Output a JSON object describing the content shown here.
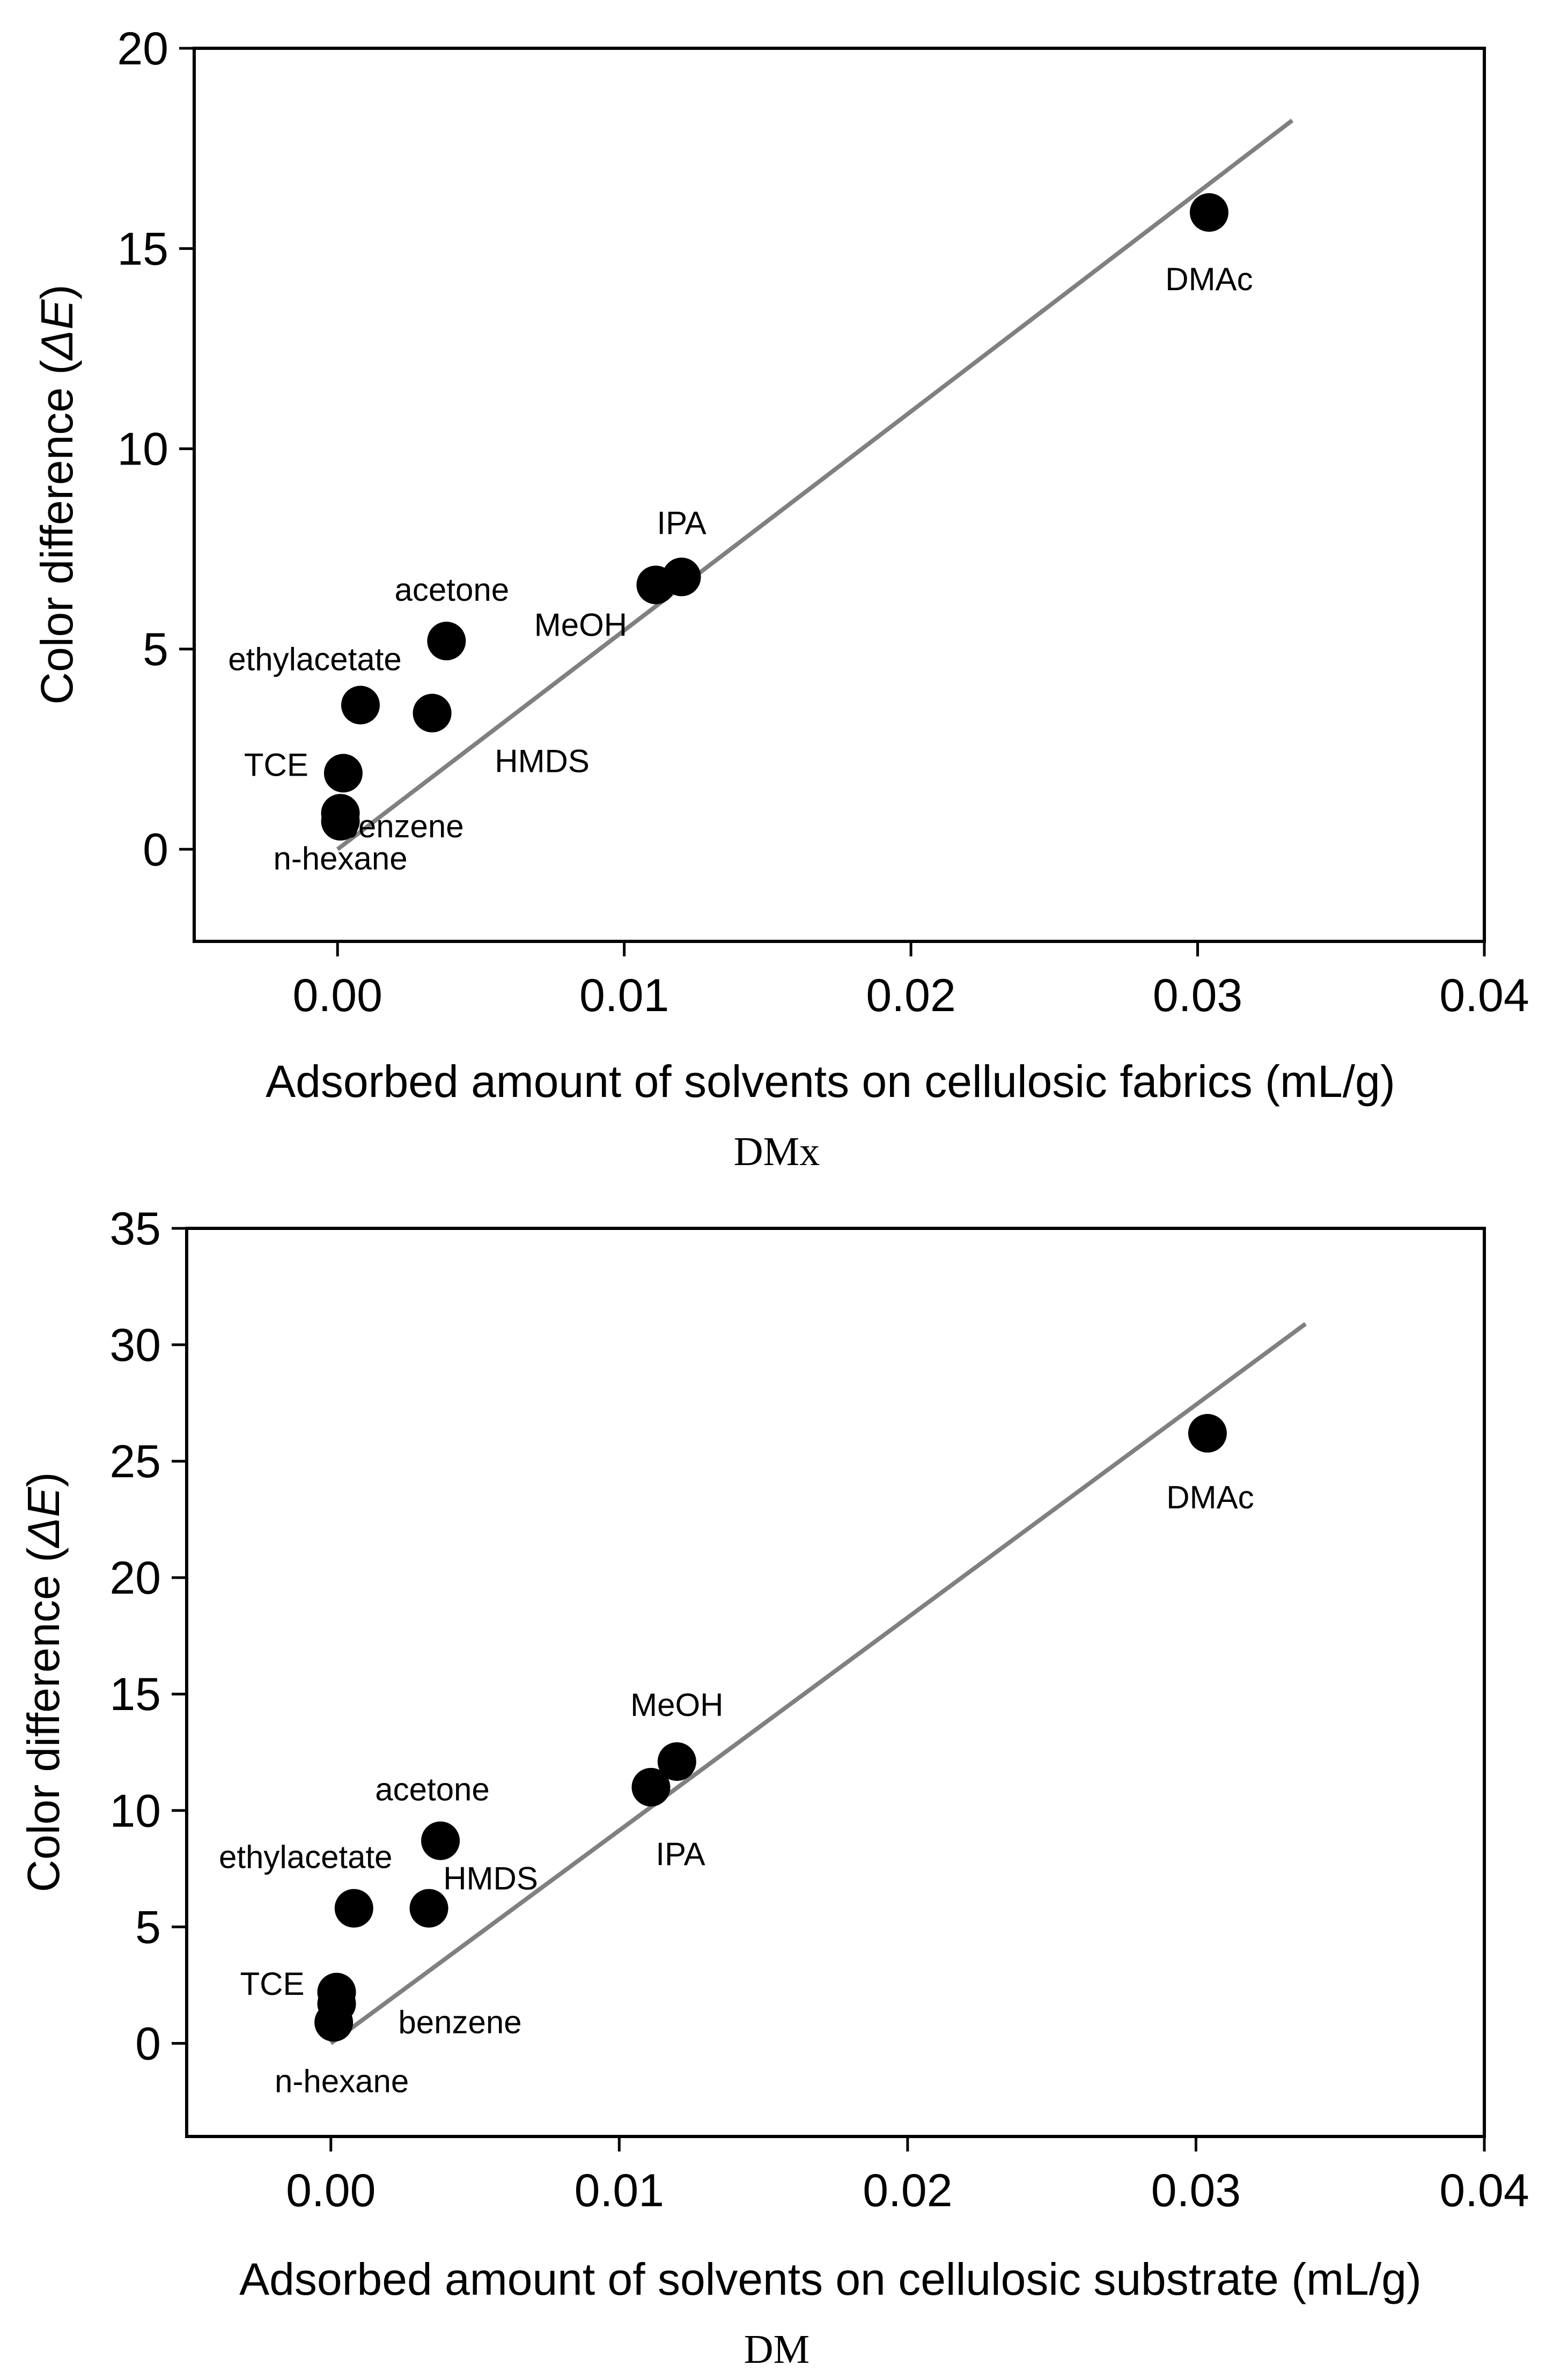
{
  "chart_data": [
    {
      "type": "scatter",
      "caption": "DMx",
      "xlabel": "Adsorbed amount of solvents on cellulosic fabrics (mL/g)",
      "ylabel": "Color difference (",
      "ylabel_symbol": "ΔE",
      "ylabel_close": ")",
      "xlim": [
        -0.005,
        0.04
      ],
      "ylim": [
        -2.3,
        20
      ],
      "xticks": [
        0.0,
        0.01,
        0.02,
        0.03,
        0.04
      ],
      "xtick_labels": [
        "0.00",
        "0.01",
        "0.02",
        "0.03",
        "0.04"
      ],
      "yticks": [
        0,
        5,
        10,
        15,
        20
      ],
      "ytick_labels": [
        "0",
        "5",
        "10",
        "15",
        "20"
      ],
      "points": [
        {
          "name": "n-hexane",
          "x": 0.0001,
          "y": 0.7
        },
        {
          "name": "benzene",
          "x": 0.0001,
          "y": 0.9
        },
        {
          "name": "TCE",
          "x": 0.0002,
          "y": 1.9
        },
        {
          "name": "ethylacetate",
          "x": 0.0008,
          "y": 3.6
        },
        {
          "name": "HMDS",
          "x": 0.0033,
          "y": 3.4
        },
        {
          "name": "acetone",
          "x": 0.0038,
          "y": 5.2
        },
        {
          "name": "MeOH",
          "x": 0.0111,
          "y": 6.6
        },
        {
          "name": "IPA",
          "x": 0.012,
          "y": 6.8
        },
        {
          "name": "DMAc",
          "x": 0.0304,
          "y": 15.9
        }
      ],
      "fit": {
        "x": [
          0.0,
          0.0333
        ],
        "y": [
          0.0,
          18.2
        ]
      }
    },
    {
      "type": "scatter",
      "caption": "DM",
      "xlabel": "Adsorbed amount of solvents on cellulosic substrate (mL/g)",
      "ylabel": "Color difference (",
      "ylabel_symbol": "ΔE",
      "ylabel_close": ")",
      "xlim": [
        -0.005,
        0.04
      ],
      "ylim": [
        -4,
        35
      ],
      "xticks": [
        0.0,
        0.01,
        0.02,
        0.03,
        0.04
      ],
      "xtick_labels": [
        "0.00",
        "0.01",
        "0.02",
        "0.03",
        "0.04"
      ],
      "yticks": [
        0,
        5,
        10,
        15,
        20,
        25,
        30,
        35
      ],
      "ytick_labels": [
        "0",
        "5",
        "10",
        "15",
        "20",
        "25",
        "30",
        "35"
      ],
      "points": [
        {
          "name": "n-hexane",
          "x": 0.0001,
          "y": 0.9
        },
        {
          "name": "benzene",
          "x": 0.0002,
          "y": 1.7
        },
        {
          "name": "TCE",
          "x": 0.0002,
          "y": 2.2
        },
        {
          "name": "ethylacetate",
          "x": 0.0008,
          "y": 5.8
        },
        {
          "name": "HMDS",
          "x": 0.0034,
          "y": 5.8
        },
        {
          "name": "acetone",
          "x": 0.0038,
          "y": 8.7
        },
        {
          "name": "IPA",
          "x": 0.0111,
          "y": 11.0
        },
        {
          "name": "MeOH",
          "x": 0.012,
          "y": 12.1
        },
        {
          "name": "DMAc",
          "x": 0.0304,
          "y": 26.2
        }
      ],
      "fit": {
        "x": [
          0.0,
          0.0338
        ],
        "y": [
          0.0,
          30.9
        ]
      }
    }
  ]
}
